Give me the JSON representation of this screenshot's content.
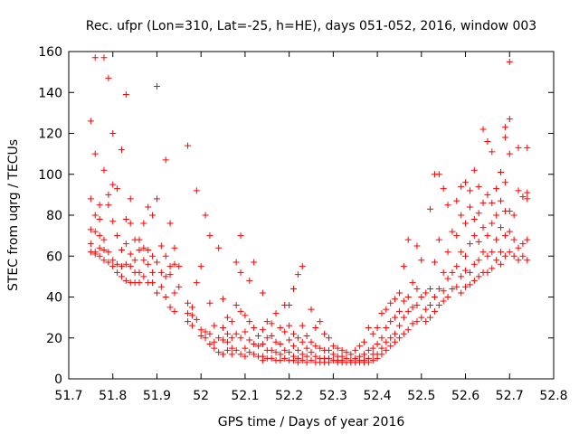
{
  "chart_data": {
    "type": "scatter",
    "title": "Rec. ufpr (Lon=310, Lat=-25, h=HE), days 051-052, 2016, window 003",
    "xlabel": "GPS time / Days of year 2016",
    "ylabel": "STEC from uqrg / TECUs",
    "xlim": [
      51.7,
      52.8
    ],
    "ylim": [
      0,
      160
    ],
    "x_ticks": [
      "51.7",
      "51.8",
      "51.9",
      "52",
      "52.1",
      "52.2",
      "52.3",
      "52.4",
      "52.5",
      "52.6",
      "52.7",
      "52.8"
    ],
    "y_ticks": [
      "0",
      "20",
      "40",
      "60",
      "80",
      "100",
      "120",
      "140",
      "160"
    ],
    "grid": false,
    "marker": "+",
    "color": "#ff0000",
    "points": [
      [
        51.75,
        126
      ],
      [
        51.75,
        88
      ],
      [
        51.75,
        73
      ],
      [
        51.75,
        66
      ],
      [
        51.75,
        62
      ],
      [
        51.76,
        157
      ],
      [
        51.76,
        110
      ],
      [
        51.76,
        80
      ],
      [
        51.76,
        72
      ],
      [
        51.76,
        62
      ],
      [
        51.76,
        61
      ],
      [
        51.77,
        85
      ],
      [
        51.77,
        78
      ],
      [
        51.77,
        70
      ],
      [
        51.77,
        64
      ],
      [
        51.77,
        60
      ],
      [
        51.78,
        157
      ],
      [
        51.78,
        102
      ],
      [
        51.78,
        68
      ],
      [
        51.78,
        63
      ],
      [
        51.78,
        58
      ],
      [
        51.79,
        147
      ],
      [
        51.79,
        90
      ],
      [
        51.79,
        85
      ],
      [
        51.79,
        62
      ],
      [
        51.79,
        57
      ],
      [
        51.8,
        120
      ],
      [
        51.8,
        95
      ],
      [
        51.8,
        77
      ],
      [
        51.8,
        58
      ],
      [
        51.8,
        55
      ],
      [
        51.81,
        93
      ],
      [
        51.81,
        70
      ],
      [
        51.81,
        56
      ],
      [
        51.81,
        52
      ],
      [
        51.82,
        112
      ],
      [
        51.82,
        63
      ],
      [
        51.82,
        55
      ],
      [
        51.82,
        50
      ],
      [
        51.83,
        139
      ],
      [
        51.83,
        78
      ],
      [
        51.83,
        66
      ],
      [
        51.83,
        56
      ],
      [
        51.83,
        48
      ],
      [
        51.84,
        88
      ],
      [
        51.84,
        76
      ],
      [
        51.84,
        61
      ],
      [
        51.84,
        55
      ],
      [
        51.84,
        47
      ],
      [
        51.85,
        68
      ],
      [
        51.85,
        58
      ],
      [
        51.85,
        52
      ],
      [
        51.85,
        47
      ],
      [
        51.86,
        68
      ],
      [
        51.86,
        63
      ],
      [
        51.86,
        52
      ],
      [
        51.86,
        47
      ],
      [
        51.87,
        76
      ],
      [
        51.87,
        64
      ],
      [
        51.87,
        58
      ],
      [
        51.87,
        50
      ],
      [
        51.88,
        84
      ],
      [
        51.88,
        63
      ],
      [
        51.88,
        56
      ],
      [
        51.88,
        47
      ],
      [
        51.89,
        80
      ],
      [
        51.89,
        60
      ],
      [
        51.89,
        52
      ],
      [
        51.89,
        47
      ],
      [
        51.9,
        143
      ],
      [
        51.9,
        88
      ],
      [
        51.9,
        57
      ],
      [
        51.9,
        42
      ],
      [
        51.91,
        65
      ],
      [
        51.91,
        52
      ],
      [
        51.91,
        45
      ],
      [
        51.92,
        107
      ],
      [
        51.92,
        60
      ],
      [
        51.92,
        50
      ],
      [
        51.92,
        40
      ],
      [
        51.93,
        76
      ],
      [
        51.93,
        55
      ],
      [
        51.93,
        51
      ],
      [
        51.93,
        35
      ],
      [
        51.94,
        64
      ],
      [
        51.94,
        56
      ],
      [
        51.94,
        42
      ],
      [
        51.94,
        33
      ],
      [
        51.95,
        55
      ],
      [
        51.95,
        45
      ],
      [
        51.97,
        114
      ],
      [
        51.97,
        37
      ],
      [
        51.97,
        32
      ],
      [
        51.97,
        28
      ],
      [
        51.98,
        35
      ],
      [
        51.98,
        31
      ],
      [
        51.98,
        26
      ],
      [
        51.99,
        92
      ],
      [
        51.99,
        47
      ],
      [
        51.99,
        29
      ],
      [
        52.0,
        55
      ],
      [
        52.0,
        24
      ],
      [
        52.0,
        21
      ],
      [
        52.01,
        80
      ],
      [
        52.01,
        23
      ],
      [
        52.01,
        20
      ],
      [
        52.02,
        70
      ],
      [
        52.02,
        37
      ],
      [
        52.02,
        22
      ],
      [
        52.02,
        17
      ],
      [
        52.03,
        26
      ],
      [
        52.03,
        18
      ],
      [
        52.03,
        15
      ],
      [
        52.04,
        64
      ],
      [
        52.04,
        20
      ],
      [
        52.04,
        13
      ],
      [
        52.05,
        39
      ],
      [
        52.05,
        25
      ],
      [
        52.05,
        19
      ],
      [
        52.05,
        12
      ],
      [
        52.06,
        30
      ],
      [
        52.06,
        22
      ],
      [
        52.06,
        18
      ],
      [
        52.06,
        14
      ],
      [
        52.07,
        28
      ],
      [
        52.07,
        20
      ],
      [
        52.07,
        15
      ],
      [
        52.07,
        12
      ],
      [
        52.08,
        57
      ],
      [
        52.08,
        36
      ],
      [
        52.08,
        22
      ],
      [
        52.08,
        14
      ],
      [
        52.09,
        70
      ],
      [
        52.09,
        52
      ],
      [
        52.09,
        33
      ],
      [
        52.09,
        20
      ],
      [
        52.09,
        12
      ],
      [
        52.1,
        31
      ],
      [
        52.1,
        23
      ],
      [
        52.1,
        15
      ],
      [
        52.1,
        11
      ],
      [
        52.11,
        48
      ],
      [
        52.11,
        28
      ],
      [
        52.11,
        19
      ],
      [
        52.11,
        13
      ],
      [
        52.12,
        57
      ],
      [
        52.12,
        25
      ],
      [
        52.12,
        17
      ],
      [
        52.12,
        12
      ],
      [
        52.13,
        21
      ],
      [
        52.13,
        16
      ],
      [
        52.13,
        11
      ],
      [
        52.14,
        42
      ],
      [
        52.14,
        24
      ],
      [
        52.14,
        17
      ],
      [
        52.14,
        11
      ],
      [
        52.14,
        9
      ],
      [
        52.15,
        28
      ],
      [
        52.15,
        20
      ],
      [
        52.15,
        14
      ],
      [
        52.15,
        10
      ],
      [
        52.16,
        27
      ],
      [
        52.16,
        21
      ],
      [
        52.16,
        14
      ],
      [
        52.16,
        10
      ],
      [
        52.17,
        32
      ],
      [
        52.17,
        18
      ],
      [
        52.17,
        13
      ],
      [
        52.17,
        9
      ],
      [
        52.18,
        25
      ],
      [
        52.18,
        17
      ],
      [
        52.18,
        12
      ],
      [
        52.18,
        9
      ],
      [
        52.19,
        36
      ],
      [
        52.19,
        23
      ],
      [
        52.19,
        14
      ],
      [
        52.19,
        10
      ],
      [
        52.2,
        36
      ],
      [
        52.2,
        26
      ],
      [
        52.2,
        19
      ],
      [
        52.2,
        13
      ],
      [
        52.2,
        9
      ],
      [
        52.21,
        44
      ],
      [
        52.21,
        22
      ],
      [
        52.21,
        16
      ],
      [
        52.21,
        11
      ],
      [
        52.21,
        9
      ],
      [
        52.22,
        51
      ],
      [
        52.22,
        20
      ],
      [
        52.22,
        14
      ],
      [
        52.22,
        10
      ],
      [
        52.22,
        8
      ],
      [
        52.23,
        55
      ],
      [
        52.23,
        26
      ],
      [
        52.23,
        18
      ],
      [
        52.23,
        12
      ],
      [
        52.23,
        9
      ],
      [
        52.24,
        21
      ],
      [
        52.24,
        15
      ],
      [
        52.24,
        11
      ],
      [
        52.24,
        8
      ],
      [
        52.25,
        34
      ],
      [
        52.25,
        18
      ],
      [
        52.25,
        13
      ],
      [
        52.25,
        9
      ],
      [
        52.26,
        25
      ],
      [
        52.26,
        16
      ],
      [
        52.26,
        11
      ],
      [
        52.26,
        8
      ],
      [
        52.27,
        28
      ],
      [
        52.27,
        15
      ],
      [
        52.27,
        10
      ],
      [
        52.27,
        8
      ],
      [
        52.28,
        22
      ],
      [
        52.28,
        14
      ],
      [
        52.28,
        10
      ],
      [
        52.28,
        8
      ],
      [
        52.29,
        20
      ],
      [
        52.29,
        14
      ],
      [
        52.29,
        10
      ],
      [
        52.29,
        8
      ],
      [
        52.3,
        16
      ],
      [
        52.3,
        12
      ],
      [
        52.3,
        9
      ],
      [
        52.31,
        15
      ],
      [
        52.31,
        11
      ],
      [
        52.31,
        9
      ],
      [
        52.31,
        8
      ],
      [
        52.32,
        14
      ],
      [
        52.32,
        11
      ],
      [
        52.32,
        9
      ],
      [
        52.32,
        8
      ],
      [
        52.33,
        13
      ],
      [
        52.33,
        10
      ],
      [
        52.33,
        8
      ],
      [
        52.34,
        12
      ],
      [
        52.34,
        9
      ],
      [
        52.34,
        8
      ],
      [
        52.35,
        14
      ],
      [
        52.35,
        10
      ],
      [
        52.35,
        8
      ],
      [
        52.36,
        16
      ],
      [
        52.36,
        11
      ],
      [
        52.36,
        9
      ],
      [
        52.36,
        8
      ],
      [
        52.37,
        18
      ],
      [
        52.37,
        12
      ],
      [
        52.37,
        9
      ],
      [
        52.37,
        8
      ],
      [
        52.38,
        25
      ],
      [
        52.38,
        14
      ],
      [
        52.38,
        10
      ],
      [
        52.38,
        8
      ],
      [
        52.39,
        22
      ],
      [
        52.39,
        15
      ],
      [
        52.39,
        12
      ],
      [
        52.39,
        9
      ],
      [
        52.4,
        25
      ],
      [
        52.4,
        17
      ],
      [
        52.4,
        12
      ],
      [
        52.4,
        10
      ],
      [
        52.41,
        32
      ],
      [
        52.41,
        20
      ],
      [
        52.41,
        15
      ],
      [
        52.41,
        12
      ],
      [
        52.42,
        34
      ],
      [
        52.42,
        25
      ],
      [
        52.42,
        18
      ],
      [
        52.42,
        14
      ],
      [
        52.43,
        37
      ],
      [
        52.43,
        28
      ],
      [
        52.43,
        20
      ],
      [
        52.43,
        16
      ],
      [
        52.44,
        39
      ],
      [
        52.44,
        30
      ],
      [
        52.44,
        22
      ],
      [
        52.44,
        18
      ],
      [
        52.45,
        42
      ],
      [
        52.45,
        33
      ],
      [
        52.45,
        26
      ],
      [
        52.45,
        20
      ],
      [
        52.46,
        55
      ],
      [
        52.46,
        38
      ],
      [
        52.46,
        30
      ],
      [
        52.46,
        22
      ],
      [
        52.47,
        68
      ],
      [
        52.47,
        40
      ],
      [
        52.47,
        33
      ],
      [
        52.47,
        24
      ],
      [
        52.48,
        47
      ],
      [
        52.48,
        35
      ],
      [
        52.48,
        27
      ],
      [
        52.49,
        65
      ],
      [
        52.49,
        44
      ],
      [
        52.49,
        36
      ],
      [
        52.49,
        28
      ],
      [
        52.5,
        58
      ],
      [
        52.5,
        40
      ],
      [
        52.5,
        30
      ],
      [
        52.51,
        42
      ],
      [
        52.51,
        34
      ],
      [
        52.51,
        28
      ],
      [
        52.52,
        83
      ],
      [
        52.52,
        44
      ],
      [
        52.52,
        36
      ],
      [
        52.52,
        30
      ],
      [
        52.53,
        100
      ],
      [
        52.53,
        57
      ],
      [
        52.53,
        40
      ],
      [
        52.53,
        33
      ],
      [
        52.54,
        100
      ],
      [
        52.54,
        68
      ],
      [
        52.54,
        44
      ],
      [
        52.54,
        36
      ],
      [
        52.55,
        93
      ],
      [
        52.55,
        52
      ],
      [
        52.55,
        43
      ],
      [
        52.55,
        38
      ],
      [
        52.56,
        85
      ],
      [
        52.56,
        62
      ],
      [
        52.56,
        49
      ],
      [
        52.56,
        40
      ],
      [
        52.57,
        72
      ],
      [
        52.57,
        52
      ],
      [
        52.57,
        44
      ],
      [
        52.58,
        87
      ],
      [
        52.58,
        70
      ],
      [
        52.58,
        55
      ],
      [
        52.58,
        45
      ],
      [
        52.59,
        94
      ],
      [
        52.59,
        80
      ],
      [
        52.59,
        62
      ],
      [
        52.59,
        50
      ],
      [
        52.59,
        42
      ],
      [
        52.6,
        96
      ],
      [
        52.6,
        76
      ],
      [
        52.6,
        60
      ],
      [
        52.6,
        53
      ],
      [
        52.6,
        45
      ],
      [
        52.61,
        92
      ],
      [
        52.61,
        84
      ],
      [
        52.61,
        66
      ],
      [
        52.61,
        52
      ],
      [
        52.61,
        46
      ],
      [
        52.62,
        102
      ],
      [
        52.62,
        78
      ],
      [
        52.62,
        70
      ],
      [
        52.62,
        56
      ],
      [
        52.62,
        48
      ],
      [
        52.63,
        94
      ],
      [
        52.63,
        81
      ],
      [
        52.63,
        67
      ],
      [
        52.63,
        58
      ],
      [
        52.63,
        50
      ],
      [
        52.64,
        122
      ],
      [
        52.64,
        86
      ],
      [
        52.64,
        74
      ],
      [
        52.64,
        62
      ],
      [
        52.64,
        52
      ],
      [
        52.65,
        116
      ],
      [
        52.65,
        90
      ],
      [
        52.65,
        70
      ],
      [
        52.65,
        60
      ],
      [
        52.65,
        52
      ],
      [
        52.66,
        111
      ],
      [
        52.66,
        86
      ],
      [
        52.66,
        76
      ],
      [
        52.66,
        62
      ],
      [
        52.66,
        54
      ],
      [
        52.67,
        93
      ],
      [
        52.67,
        80
      ],
      [
        52.67,
        68
      ],
      [
        52.67,
        58
      ],
      [
        52.68,
        101
      ],
      [
        52.68,
        87
      ],
      [
        52.68,
        74
      ],
      [
        52.68,
        62
      ],
      [
        52.68,
        56
      ],
      [
        52.69,
        123
      ],
      [
        52.69,
        118
      ],
      [
        52.69,
        96
      ],
      [
        52.69,
        82
      ],
      [
        52.69,
        70
      ],
      [
        52.69,
        60
      ],
      [
        52.7,
        155
      ],
      [
        52.7,
        127
      ],
      [
        52.7,
        110
      ],
      [
        52.7,
        82
      ],
      [
        52.7,
        72
      ],
      [
        52.7,
        62
      ],
      [
        52.71,
        80
      ],
      [
        52.71,
        68
      ],
      [
        52.71,
        60
      ],
      [
        52.72,
        113
      ],
      [
        52.72,
        92
      ],
      [
        52.72,
        64
      ],
      [
        52.72,
        58
      ],
      [
        52.73,
        89
      ],
      [
        52.73,
        66
      ],
      [
        52.73,
        60
      ],
      [
        52.74,
        113
      ],
      [
        52.74,
        91
      ],
      [
        52.74,
        88
      ],
      [
        52.74,
        68
      ],
      [
        52.74,
        58
      ]
    ]
  }
}
